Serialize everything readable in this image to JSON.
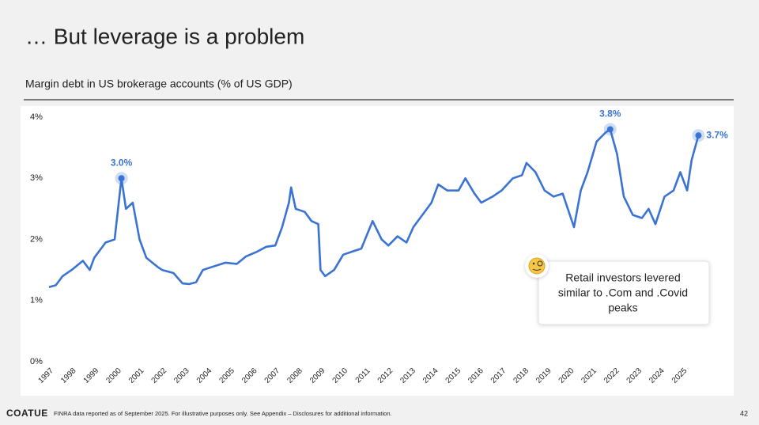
{
  "header": {
    "title": "… But leverage is a problem",
    "subtitle": "Margin debt in US brokerage accounts (% of US GDP)"
  },
  "chart_data": {
    "type": "line",
    "x": [
      1997,
      1997.3,
      1997.6,
      1998,
      1998.5,
      1998.8,
      1999,
      1999.5,
      1999.9,
      2000.2,
      2000.4,
      2000.7,
      2001,
      2001.3,
      2001.8,
      2002,
      2002.5,
      2002.9,
      2003.2,
      2003.5,
      2003.8,
      2004.2,
      2004.8,
      2005.3,
      2005.7,
      2006.2,
      2006.6,
      2007,
      2007.3,
      2007.6,
      2007.7,
      2007.9,
      2008.3,
      2008.6,
      2008.9,
      2009,
      2009.2,
      2009.6,
      2010,
      2010.4,
      2010.8,
      2011.3,
      2011.7,
      2012,
      2012.4,
      2012.8,
      2013.1,
      2013.5,
      2013.9,
      2014.2,
      2014.6,
      2015.1,
      2015.4,
      2015.8,
      2016.1,
      2016.6,
      2017,
      2017.5,
      2017.9,
      2018.1,
      2018.5,
      2018.9,
      2019.3,
      2019.7,
      2020.2,
      2020.5,
      2020.8,
      2021.2,
      2021.6,
      2021.8,
      2022.1,
      2022.4,
      2022.8,
      2023.2,
      2023.5,
      2023.8,
      2024.2,
      2024.6,
      2024.9,
      2025.2,
      2025.4,
      2025.7
    ],
    "series": [
      {
        "name": "Margin debt (% of US GDP)",
        "color": "#3a73d3",
        "values": [
          1.22,
          1.25,
          1.4,
          1.5,
          1.65,
          1.5,
          1.7,
          1.95,
          2.0,
          3.0,
          2.5,
          2.6,
          2.0,
          1.7,
          1.55,
          1.5,
          1.45,
          1.28,
          1.27,
          1.3,
          1.5,
          1.55,
          1.62,
          1.6,
          1.72,
          1.8,
          1.88,
          1.9,
          2.2,
          2.6,
          2.85,
          2.5,
          2.45,
          2.3,
          2.25,
          1.5,
          1.4,
          1.5,
          1.75,
          1.8,
          1.85,
          2.3,
          2.0,
          1.9,
          2.05,
          1.95,
          2.2,
          2.4,
          2.6,
          2.9,
          2.8,
          2.8,
          3.0,
          2.75,
          2.6,
          2.7,
          2.8,
          3.0,
          3.05,
          3.25,
          3.1,
          2.8,
          2.7,
          2.75,
          2.2,
          2.8,
          3.1,
          3.6,
          3.75,
          3.8,
          3.4,
          2.7,
          2.4,
          2.35,
          2.5,
          2.25,
          2.7,
          2.8,
          3.1,
          2.8,
          3.3,
          3.7
        ]
      }
    ],
    "highlights": [
      {
        "x": 2000.2,
        "value": 3.0,
        "label": "3.0%"
      },
      {
        "x": 2021.8,
        "value": 3.8,
        "label": "3.8%"
      },
      {
        "x": 2025.7,
        "value": 3.7,
        "label": "3.7%"
      }
    ],
    "xlim": [
      1997,
      2026
    ],
    "xticks": [
      1997,
      1998,
      1999,
      2000,
      2001,
      2002,
      2003,
      2004,
      2005,
      2006,
      2007,
      2008,
      2009,
      2010,
      2011,
      2012,
      2013,
      2014,
      2015,
      2016,
      2017,
      2018,
      2019,
      2020,
      2021,
      2022,
      2023,
      2024,
      2025
    ],
    "ylim": [
      0,
      4
    ],
    "yticks": [
      {
        "value": 0,
        "label": "0%"
      },
      {
        "value": 1,
        "label": "1%"
      },
      {
        "value": 2,
        "label": "2%"
      },
      {
        "value": 3,
        "label": "3%"
      },
      {
        "value": 4,
        "label": "4%"
      }
    ],
    "callout": [
      "Retail investors levered",
      "similar to .Com and .Covid",
      "peaks"
    ]
  },
  "footer": {
    "brand": "COATUE",
    "note": "FINRA data reported as of September 2025. For illustrative purposes only. See Appendix – Disclosures for additional information.",
    "page": "42"
  }
}
